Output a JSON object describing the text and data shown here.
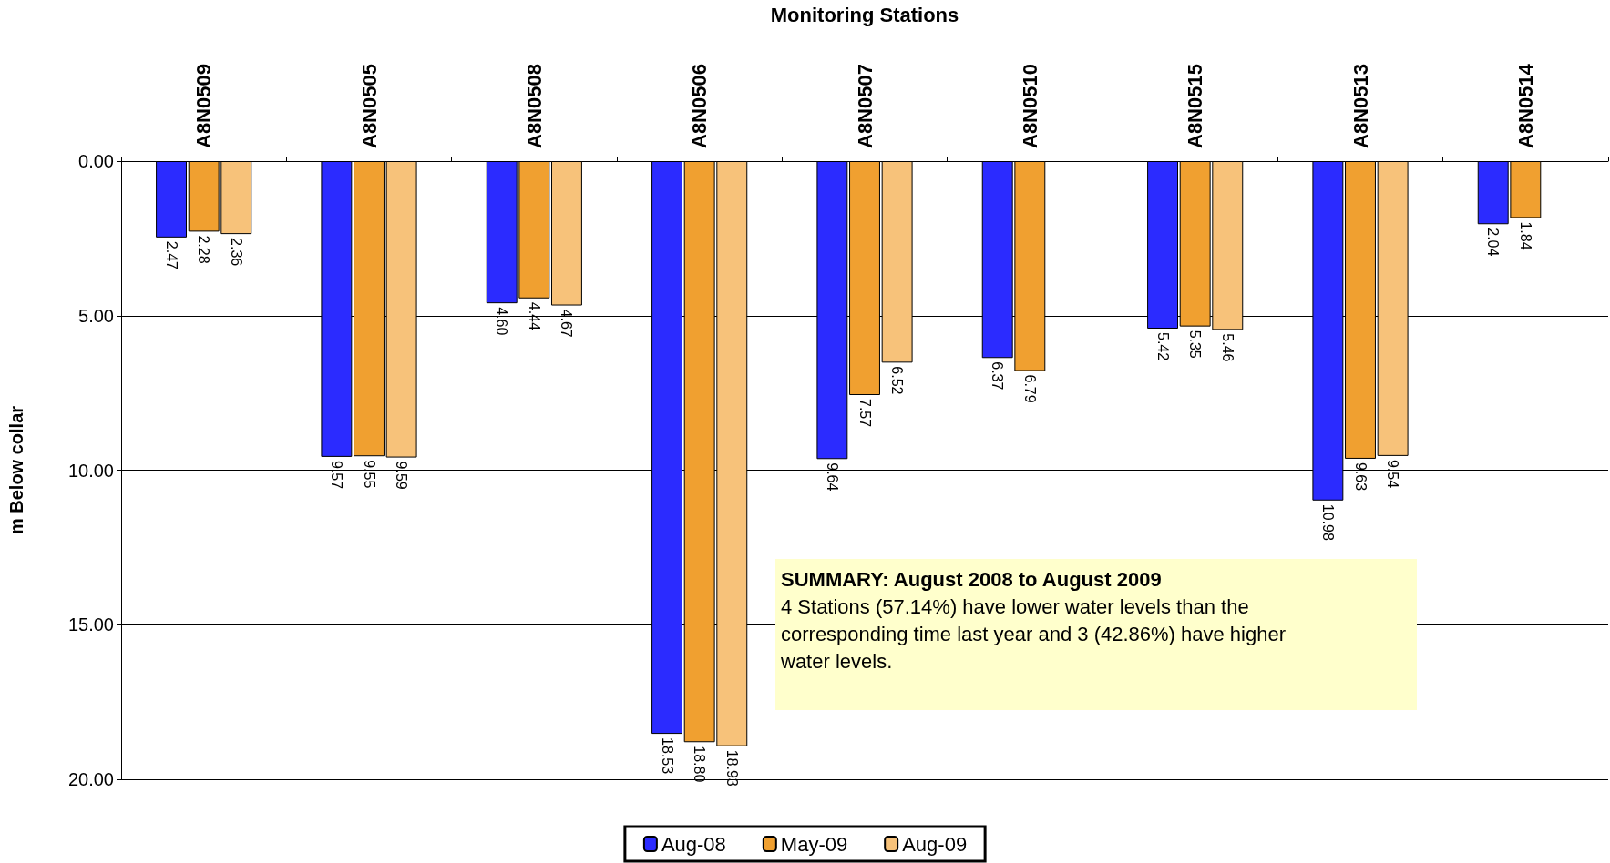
{
  "chart_data": {
    "type": "bar",
    "xlabel": "Monitoring Stations",
    "ylabel": "m Below collar",
    "categories": [
      "A8N0509",
      "A8N0505",
      "A8N0508",
      "A8N0506",
      "A8N0507",
      "A8N0510",
      "A8N0515",
      "A8N0513",
      "A8N0514"
    ],
    "series": [
      {
        "name": "Aug-08",
        "color": "#2b2bff",
        "values": [
          2.47,
          9.57,
          4.6,
          18.53,
          9.64,
          6.37,
          5.42,
          10.98,
          2.04
        ],
        "value_labels": [
          "2.47",
          "9.57",
          "4.60",
          "18.53",
          "9.64",
          "6.37",
          "5.42",
          "10.98",
          "2.04"
        ]
      },
      {
        "name": "May-09",
        "color": "#f0a030",
        "values": [
          2.28,
          9.55,
          4.44,
          18.8,
          7.57,
          6.79,
          5.35,
          9.63,
          1.84
        ],
        "value_labels": [
          "2.28",
          "9.55",
          "4.44",
          "18.80",
          "7.57",
          "6.79",
          "5.35",
          "9.63",
          "1.84"
        ]
      },
      {
        "name": "Aug-09",
        "color": "#f7c27a",
        "values": [
          2.36,
          9.59,
          4.67,
          18.93,
          6.52,
          null,
          5.46,
          9.54,
          null
        ],
        "value_labels": [
          "2.36",
          "9.59",
          "4.67",
          "18.93",
          "6.52",
          null,
          "5.46",
          "9.54",
          null
        ]
      }
    ],
    "ylim": [
      20,
      0
    ],
    "yticks": [
      {
        "value": 0,
        "label": "0.00"
      },
      {
        "value": 5,
        "label": "5.00"
      },
      {
        "value": 10,
        "label": "10.00"
      },
      {
        "value": 15,
        "label": "15.00"
      },
      {
        "value": 20,
        "label": "20.00"
      }
    ],
    "grid": "y",
    "legend": "bottom",
    "annotations": [
      "SUMMARY: August 2008 to August 2009",
      "4 Stations  (57.14%) have lower water  levels than the corresponding time last year and 3  (42.86%) have  higher water levels."
    ]
  }
}
